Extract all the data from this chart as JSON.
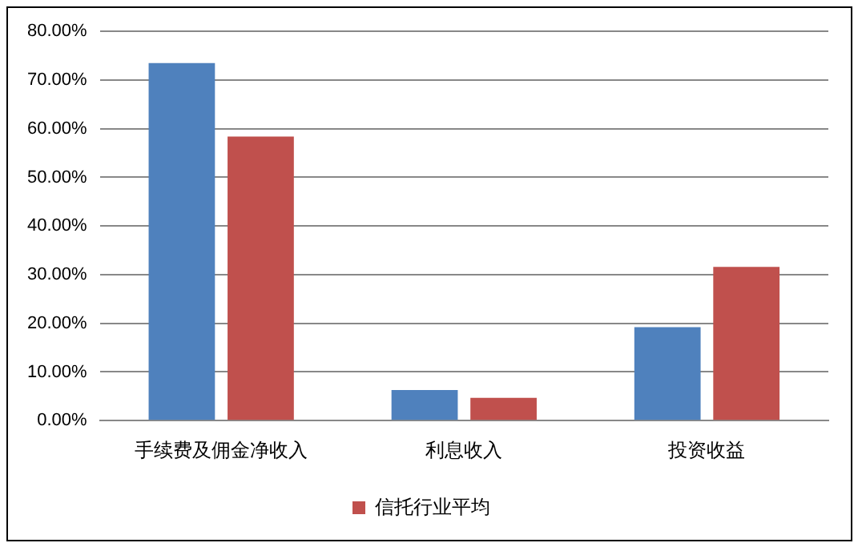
{
  "chart_data": {
    "type": "bar",
    "categories": [
      "手续费及佣金净收入",
      "利息收入",
      "投资收益"
    ],
    "series": [
      {
        "color": "#4f81bd",
        "values": [
          73.5,
          6.3,
          19.2
        ]
      },
      {
        "name": "信托行业平均",
        "color": "#c0504d",
        "values": [
          58.4,
          4.7,
          31.6
        ]
      }
    ],
    "ylim": [
      0,
      80
    ],
    "yticks": [
      {
        "value": 0,
        "label": "0.00%"
      },
      {
        "value": 10,
        "label": "10.00%"
      },
      {
        "value": 20,
        "label": "20.00%"
      },
      {
        "value": 30,
        "label": "30.00%"
      },
      {
        "value": 40,
        "label": "40.00%"
      },
      {
        "value": 50,
        "label": "50.00%"
      },
      {
        "value": 60,
        "label": "60.00%"
      },
      {
        "value": 70,
        "label": "70.00%"
      },
      {
        "value": 80,
        "label": "80.00%"
      }
    ],
    "grid": "y",
    "legend": "bottom"
  }
}
